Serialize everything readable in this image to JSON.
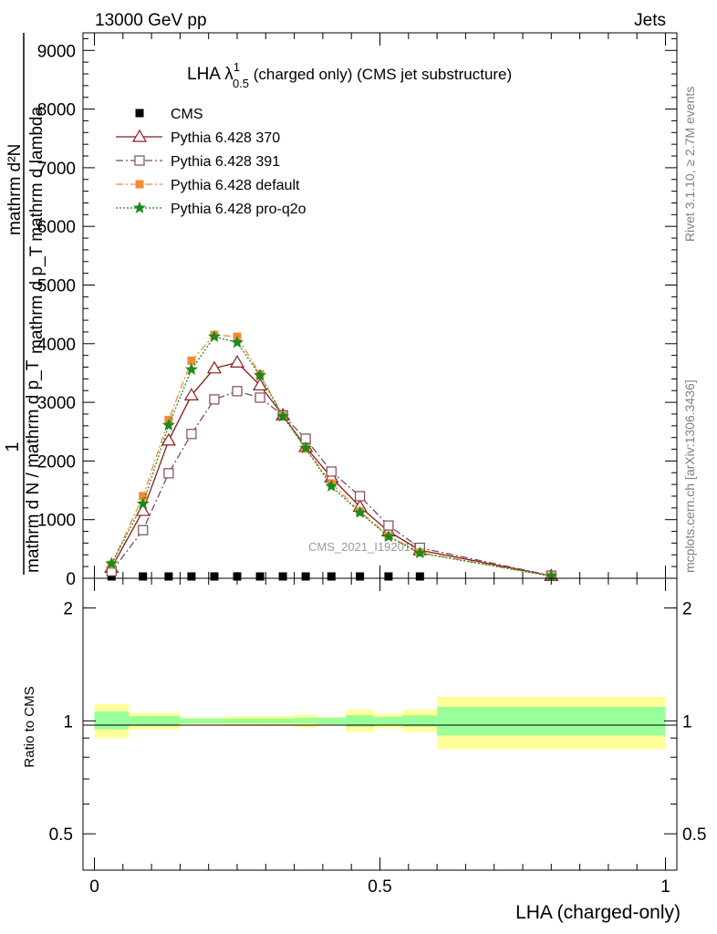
{
  "header": {
    "left": "13000 GeV pp",
    "right": "Jets"
  },
  "side_labels": {
    "rivet": "Rivet 3.1.10, ≥ 2.7M events",
    "mcplots": "mcplots.cern.ch [arXiv:1306.3436]"
  },
  "watermark": "CMS_2021_I1920187",
  "main_panel": {
    "title_prefix": "LHA λ",
    "title_sup": "1",
    "title_sub": "0.5",
    "title_suffix": " (charged only) (CMS jet substructure)",
    "ylabel_numerator": "mathrm d²N",
    "ylabel_denominator": "mathrm d p_T mathrm d lambda",
    "ylabel_prefix": "1",
    "ylabel_fraction": "mathrm d N / mathrm d p_T"
  },
  "ratio_panel": {
    "ylabel": "Ratio to CMS"
  },
  "chart_data": [
    {
      "type": "line",
      "xlabel": "LHA (charged-only)",
      "xlim": [
        0,
        1
      ],
      "ylim": [
        0,
        9300
      ],
      "yticks": [
        0,
        1000,
        2000,
        3000,
        4000,
        5000,
        6000,
        7000,
        8000,
        9000
      ],
      "ytick_labels": [
        "0",
        "1000",
        "2000",
        "3000",
        "4000",
        "5000",
        "6000",
        "7000",
        "8000",
        "9000"
      ],
      "legend_position": "top-left",
      "series": [
        {
          "name": "CMS",
          "color": "#000000",
          "marker": "filled-square",
          "x": [
            0.03,
            0.085,
            0.13,
            0.17,
            0.21,
            0.25,
            0.29,
            0.33,
            0.37,
            0.415,
            0.465,
            0.515,
            0.57
          ],
          "y": [
            0,
            0,
            0,
            0,
            0,
            0,
            0,
            0,
            0,
            0,
            0,
            0,
            0
          ]
        },
        {
          "name": "Pythia 6.428 370",
          "color": "#8b1a1a",
          "marker": "open-triangle",
          "dash": "solid",
          "x": [
            0.03,
            0.085,
            0.13,
            0.17,
            0.21,
            0.25,
            0.29,
            0.33,
            0.37,
            0.415,
            0.465,
            0.515,
            0.57,
            0.8
          ],
          "y": [
            180,
            1150,
            2350,
            3120,
            3580,
            3680,
            3290,
            2780,
            2240,
            1720,
            1220,
            800,
            480,
            40
          ]
        },
        {
          "name": "Pythia 6.428 391",
          "color": "#7b4a5e",
          "marker": "open-square",
          "dash": "dashdot",
          "x": [
            0.03,
            0.085,
            0.13,
            0.17,
            0.21,
            0.25,
            0.29,
            0.33,
            0.37,
            0.415,
            0.465,
            0.515,
            0.57,
            0.8
          ],
          "y": [
            120,
            820,
            1790,
            2460,
            3050,
            3190,
            3080,
            2780,
            2380,
            1820,
            1400,
            900,
            520,
            45
          ]
        },
        {
          "name": "Pythia 6.428 default",
          "color": "#f28c38",
          "marker": "filled-square",
          "dash": "dashdot",
          "x": [
            0.03,
            0.085,
            0.13,
            0.17,
            0.21,
            0.25,
            0.29,
            0.33,
            0.37,
            0.415,
            0.465,
            0.515,
            0.57,
            0.8
          ],
          "y": [
            230,
            1400,
            2700,
            3710,
            4150,
            4120,
            3480,
            2770,
            2210,
            1620,
            1140,
            720,
            440,
            35
          ]
        },
        {
          "name": "Pythia 6.428 pro-q2o",
          "color": "#1a8a1a",
          "marker": "star",
          "dash": "dotted",
          "x": [
            0.03,
            0.085,
            0.13,
            0.17,
            0.21,
            0.25,
            0.29,
            0.33,
            0.37,
            0.415,
            0.465,
            0.515,
            0.57,
            0.8
          ],
          "y": [
            250,
            1270,
            2610,
            3560,
            4120,
            4020,
            3460,
            2760,
            2220,
            1570,
            1120,
            710,
            430,
            35
          ]
        }
      ]
    },
    {
      "type": "area",
      "xlabel": "LHA (charged-only)",
      "ylabel": "Ratio to CMS",
      "xlim": [
        0,
        1
      ],
      "ylim": [
        0.4,
        2.4
      ],
      "y_scale": "log",
      "yticks": [
        0.5,
        1,
        2
      ],
      "ytick_labels": [
        "0.5",
        "1",
        "2"
      ],
      "xticks": [
        0,
        0.5,
        1
      ],
      "xtick_labels": [
        "0",
        "0.5",
        "1"
      ],
      "reference_line": 1,
      "bands": {
        "bin_edges": [
          0,
          0.06,
          0.1,
          0.15,
          0.19,
          0.23,
          0.27,
          0.31,
          0.35,
          0.39,
          0.44,
          0.49,
          0.54,
          0.6,
          1.0
        ],
        "stat_low": [
          0.95,
          0.97,
          0.97,
          0.985,
          0.985,
          0.985,
          0.985,
          0.985,
          0.985,
          0.98,
          0.965,
          0.975,
          0.965,
          0.915
        ],
        "stat_high": [
          1.06,
          1.03,
          1.03,
          1.015,
          1.015,
          1.015,
          1.015,
          1.015,
          1.02,
          1.02,
          1.035,
          1.025,
          1.035,
          1.09
        ],
        "sys_low": [
          0.9,
          0.95,
          0.95,
          0.98,
          0.98,
          0.97,
          0.97,
          0.97,
          0.96,
          0.975,
          0.935,
          0.955,
          0.935,
          0.84
        ],
        "sys_high": [
          1.11,
          1.05,
          1.05,
          1.02,
          1.02,
          1.03,
          1.03,
          1.03,
          1.04,
          1.025,
          1.07,
          1.045,
          1.07,
          1.16
        ],
        "stat_color": "#99ff99",
        "sys_color": "#ffff99"
      }
    }
  ]
}
